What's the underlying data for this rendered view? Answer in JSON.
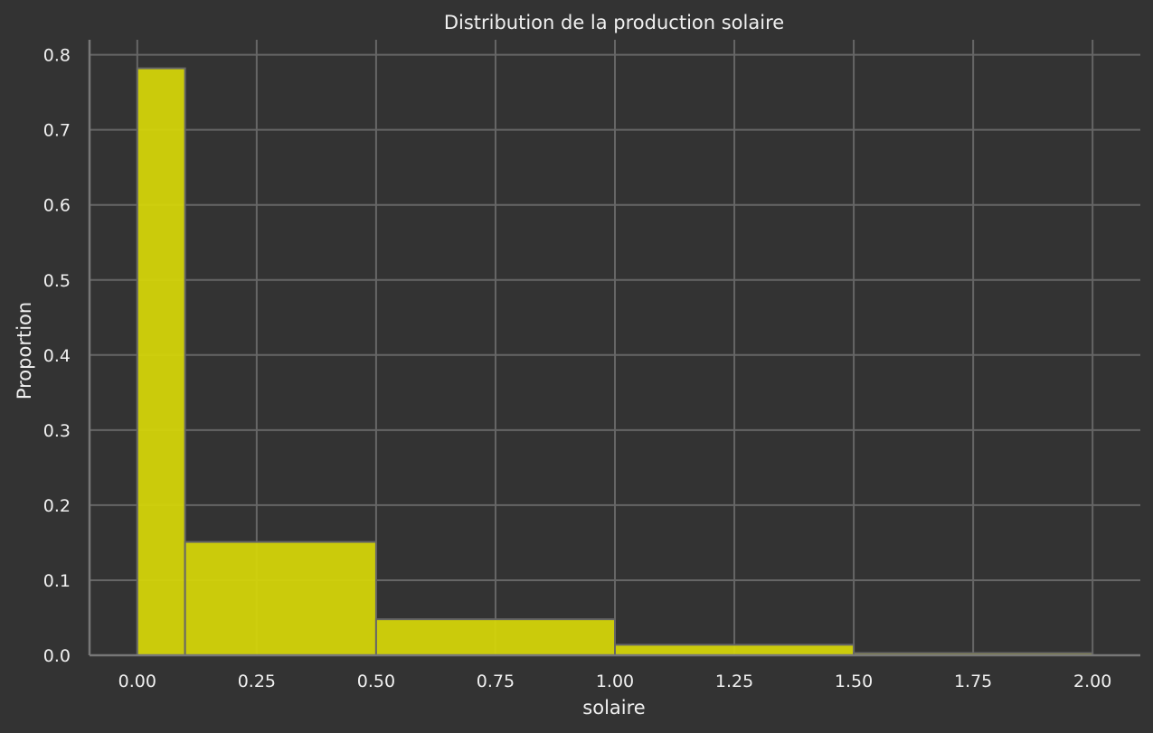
{
  "chart_data": {
    "type": "bar",
    "title": "Distribution de la production solaire",
    "xlabel": "solaire",
    "ylabel": "Proportion",
    "xlim": [
      -0.1,
      2.1
    ],
    "ylim": [
      0,
      0.82
    ],
    "x_ticks": [
      0.0,
      0.25,
      0.5,
      0.75,
      1.0,
      1.25,
      1.5,
      1.75,
      2.0
    ],
    "x_tick_labels": [
      "0.00",
      "0.25",
      "0.50",
      "0.75",
      "1.00",
      "1.25",
      "1.50",
      "1.75",
      "2.00"
    ],
    "y_ticks": [
      0.0,
      0.1,
      0.2,
      0.3,
      0.4,
      0.5,
      0.6,
      0.7,
      0.8
    ],
    "y_tick_labels": [
      "0.0",
      "0.1",
      "0.2",
      "0.3",
      "0.4",
      "0.5",
      "0.6",
      "0.7",
      "0.8"
    ],
    "grid": true,
    "bins": [
      {
        "start": 0.0,
        "end": 0.1,
        "value": 0.782
      },
      {
        "start": 0.1,
        "end": 0.5,
        "value": 0.151
      },
      {
        "start": 0.5,
        "end": 1.0,
        "value": 0.048
      },
      {
        "start": 1.0,
        "end": 1.5,
        "value": 0.014
      },
      {
        "start": 1.5,
        "end": 2.0,
        "value": 0.003
      }
    ],
    "colors": {
      "background": "#333333",
      "bar_fill": "#d4d40a",
      "bar_stroke": "#666666",
      "grid": "#666666",
      "text": "#f0f0f0",
      "axis": "#777777"
    }
  }
}
